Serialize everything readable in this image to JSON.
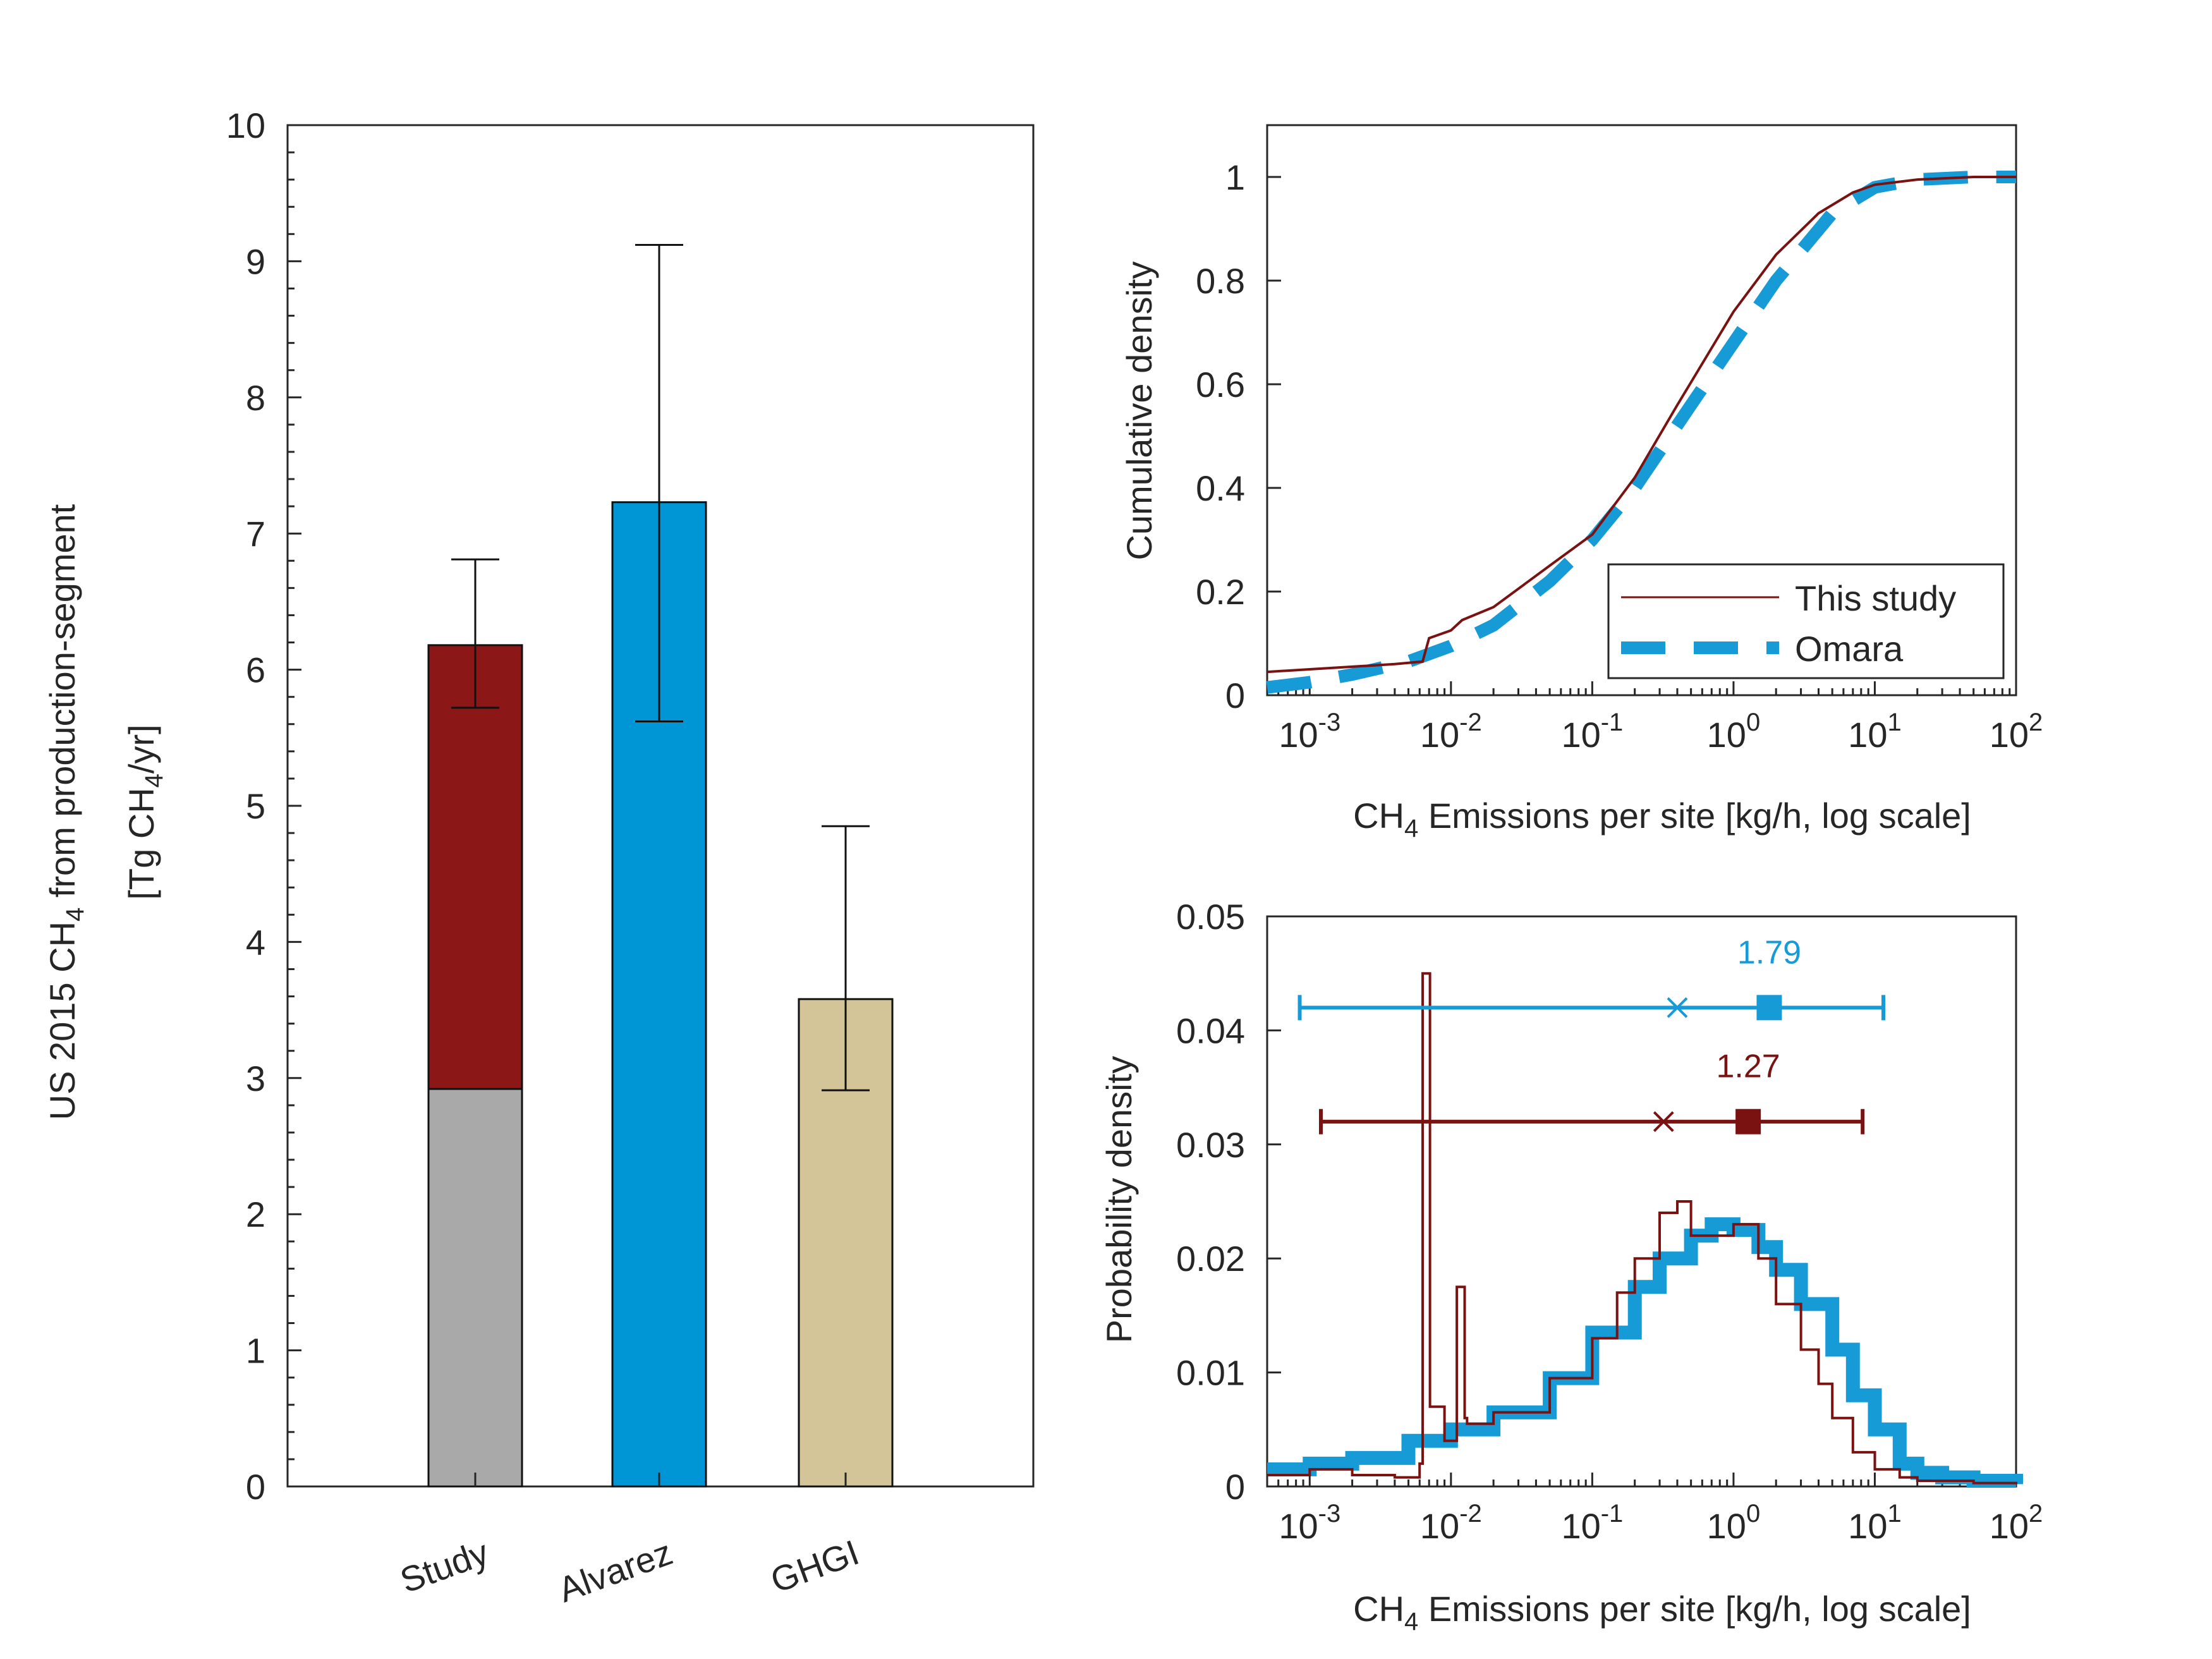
{
  "colors": {
    "study_high": "#8b1717",
    "study_low": "#a9a9a9",
    "alvarez": "#0096d6",
    "ghgi": "#d3c597",
    "axis": "#262626",
    "this_study": "#7a1212",
    "omara": "#179bd7"
  },
  "chart_data": [
    {
      "type": "bar",
      "ylabel": {
        "line1_pre": "US 2015 CH",
        "line1_sub": "4",
        "line1_post": " from production-segment",
        "line2_pre": "[Tg CH",
        "line2_sub": "4",
        "line2_post": "/yr]"
      },
      "ylim": [
        0,
        10
      ],
      "yticks": [
        "0",
        "1",
        "2",
        "3",
        "4",
        "5",
        "6",
        "7",
        "8",
        "9",
        "10"
      ],
      "categories": [
        "Study",
        "Alvarez",
        "GHGI"
      ],
      "bars": [
        {
          "category": "Study",
          "segments": [
            {
              "value": 2.92,
              "color": "#a9a9a9"
            },
            {
              "value": 3.26,
              "color": "#8b1717"
            }
          ],
          "total": 6.18,
          "err_low": 5.72,
          "err_high": 6.81
        },
        {
          "category": "Alvarez",
          "segments": [
            {
              "value": 7.23,
              "color": "#0096d6"
            }
          ],
          "total": 7.23,
          "err_low": 5.62,
          "err_high": 9.12
        },
        {
          "category": "GHGI",
          "segments": [
            {
              "value": 3.58,
              "color": "#d3c597"
            }
          ],
          "total": 3.58,
          "err_low": 2.91,
          "err_high": 4.85
        }
      ]
    },
    {
      "type": "line",
      "ylabel": "Cumulative density",
      "xlabel": {
        "pre": "CH",
        "sub": "4",
        "post": " Emissions per site [kg/h, log scale]"
      },
      "xscale": "log",
      "xlim": [
        0.0005,
        100
      ],
      "ylim": [
        0,
        1.1
      ],
      "xticks": [
        {
          "base": "10",
          "exp": "-3"
        },
        {
          "base": "10",
          "exp": "-2"
        },
        {
          "base": "10",
          "exp": "-1"
        },
        {
          "base": "10",
          "exp": "0"
        },
        {
          "base": "10",
          "exp": "1"
        },
        {
          "base": "10",
          "exp": "2"
        }
      ],
      "yticks": [
        "0",
        "0.2",
        "0.4",
        "0.6",
        "0.8",
        "1"
      ],
      "legend": {
        "position": "bottom-right",
        "entries": [
          "This study",
          "Omara"
        ]
      },
      "series": [
        {
          "name": "This study",
          "x": [
            0.0005,
            0.001,
            0.002,
            0.004,
            0.0063,
            0.007,
            0.01,
            0.012,
            0.02,
            0.05,
            0.1,
            0.2,
            0.4,
            0.7,
            1,
            2,
            4,
            7,
            10,
            20,
            50,
            100
          ],
          "y": [
            0.045,
            0.05,
            0.055,
            0.06,
            0.065,
            0.11,
            0.125,
            0.145,
            0.17,
            0.25,
            0.31,
            0.42,
            0.56,
            0.67,
            0.74,
            0.85,
            0.93,
            0.97,
            0.985,
            0.995,
            1.0,
            1.0
          ]
        },
        {
          "name": "Omara",
          "x": [
            0.0005,
            0.001,
            0.002,
            0.005,
            0.01,
            0.02,
            0.05,
            0.1,
            0.2,
            0.5,
            1,
            2,
            5,
            10,
            20,
            50,
            100
          ],
          "y": [
            0.015,
            0.025,
            0.04,
            0.065,
            0.095,
            0.135,
            0.22,
            0.3,
            0.4,
            0.56,
            0.68,
            0.8,
            0.93,
            0.98,
            0.995,
            1.0,
            1.0
          ]
        }
      ]
    },
    {
      "type": "line",
      "ylabel": "Probability density",
      "xlabel": {
        "pre": "CH",
        "sub": "4",
        "post": " Emissions per site [kg/h, log scale]"
      },
      "xscale": "log",
      "xlim": [
        0.0005,
        100
      ],
      "ylim": [
        0,
        0.05
      ],
      "xticks": [
        {
          "base": "10",
          "exp": "-3"
        },
        {
          "base": "10",
          "exp": "-2"
        },
        {
          "base": "10",
          "exp": "-1"
        },
        {
          "base": "10",
          "exp": "0"
        },
        {
          "base": "10",
          "exp": "1"
        },
        {
          "base": "10",
          "exp": "2"
        }
      ],
      "yticks": [
        "0",
        "0.01",
        "0.02",
        "0.03",
        "0.04",
        "0.05"
      ],
      "series": [
        {
          "name": "This study",
          "x": [
            0.0005,
            0.001,
            0.002,
            0.004,
            0.006,
            0.0063,
            0.0067,
            0.0071,
            0.009,
            0.011,
            0.0115,
            0.0125,
            0.013,
            0.02,
            0.05,
            0.1,
            0.15,
            0.2,
            0.3,
            0.4,
            0.5,
            0.7,
            1,
            1.5,
            2,
            3,
            4,
            5,
            7,
            10,
            15,
            20,
            50,
            100
          ],
          "y": [
            0.001,
            0.0015,
            0.001,
            0.0008,
            0.002,
            0.045,
            0.045,
            0.007,
            0.004,
            0.0175,
            0.0175,
            0.006,
            0.0055,
            0.0065,
            0.0095,
            0.013,
            0.017,
            0.02,
            0.024,
            0.025,
            0.022,
            0.022,
            0.023,
            0.02,
            0.016,
            0.012,
            0.009,
            0.006,
            0.003,
            0.0015,
            0.0008,
            0.0005,
            0.0003,
            0.0002
          ]
        },
        {
          "name": "Omara",
          "x": [
            0.0005,
            0.001,
            0.002,
            0.005,
            0.01,
            0.02,
            0.05,
            0.1,
            0.2,
            0.3,
            0.5,
            0.7,
            1,
            1.5,
            2,
            3,
            5,
            7,
            10,
            15,
            20,
            30,
            50,
            100
          ],
          "y": [
            0.0015,
            0.002,
            0.0025,
            0.004,
            0.005,
            0.0065,
            0.0095,
            0.0135,
            0.0175,
            0.02,
            0.022,
            0.023,
            0.0225,
            0.021,
            0.019,
            0.016,
            0.012,
            0.008,
            0.005,
            0.002,
            0.0012,
            0.0008,
            0.0005,
            0.0002
          ]
        }
      ],
      "summary_bars": [
        {
          "series": "Omara",
          "y": 0.042,
          "low": 0.00085,
          "high": 11.5,
          "cross": 0.4,
          "square": 1.79,
          "label": "1.79"
        },
        {
          "series": "This study",
          "y": 0.032,
          "low": 0.0012,
          "high": 8.2,
          "cross": 0.32,
          "square": 1.27,
          "label": "1.27"
        }
      ]
    }
  ]
}
